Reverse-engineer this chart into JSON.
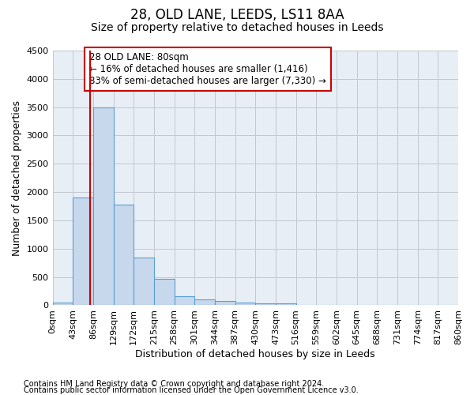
{
  "title": "28, OLD LANE, LEEDS, LS11 8AA",
  "subtitle": "Size of property relative to detached houses in Leeds",
  "xlabel": "Distribution of detached houses by size in Leeds",
  "ylabel": "Number of detached properties",
  "bar_color": "#c8d8ec",
  "bar_edge_color": "#5a9fd4",
  "bin_labels": [
    "0sqm",
    "43sqm",
    "86sqm",
    "129sqm",
    "172sqm",
    "215sqm",
    "258sqm",
    "301sqm",
    "344sqm",
    "387sqm",
    "430sqm",
    "473sqm",
    "516sqm",
    "559sqm",
    "602sqm",
    "645sqm",
    "688sqm",
    "731sqm",
    "774sqm",
    "817sqm",
    "860sqm"
  ],
  "bar_values": [
    50,
    1900,
    3500,
    1780,
    840,
    460,
    160,
    100,
    70,
    55,
    40,
    30,
    0,
    0,
    0,
    0,
    0,
    0,
    0,
    0
  ],
  "bin_edges": [
    0,
    43,
    86,
    129,
    172,
    215,
    258,
    301,
    344,
    387,
    430,
    473,
    516,
    559,
    602,
    645,
    688,
    731,
    774,
    817,
    860
  ],
  "vline_x": 80,
  "vline_color": "#cc0000",
  "annotation_line1": "28 OLD LANE: 80sqm",
  "annotation_line2": "← 16% of detached houses are smaller (1,416)",
  "annotation_line3": "83% of semi-detached houses are larger (7,330) →",
  "annotation_box_color": "#cc0000",
  "ylim": [
    0,
    4500
  ],
  "yticks": [
    0,
    500,
    1000,
    1500,
    2000,
    2500,
    3000,
    3500,
    4000,
    4500
  ],
  "footer_line1": "Contains HM Land Registry data © Crown copyright and database right 2024.",
  "footer_line2": "Contains public sector information licensed under the Open Government Licence v3.0.",
  "background_color": "#ffffff",
  "plot_bg_color": "#e8eef5",
  "grid_color": "#c0c8d0",
  "title_fontsize": 12,
  "subtitle_fontsize": 10,
  "axis_label_fontsize": 9,
  "tick_fontsize": 8,
  "annotation_fontsize": 8.5,
  "footer_fontsize": 7
}
